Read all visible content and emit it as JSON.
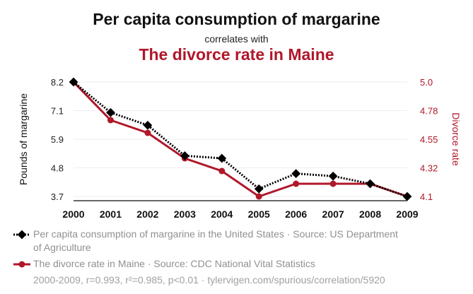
{
  "title": "Per capita consumption of margarine",
  "subtitle": "correlates with",
  "title2": "The divorce rate in Maine",
  "colors": {
    "series1": "#000000",
    "series2": "#b0172a",
    "title2": "#b0172a",
    "axis_right": "#b0172a"
  },
  "chart_data": {
    "type": "line",
    "x": [
      "2000",
      "2001",
      "2002",
      "2003",
      "2004",
      "2005",
      "2006",
      "2007",
      "2008",
      "2009"
    ],
    "series": [
      {
        "name": "Per capita consumption of margarine in the United States · Source: US Department of Agriculture",
        "axis": "left",
        "values": [
          8.2,
          7.0,
          6.5,
          5.3,
          5.2,
          4.0,
          4.6,
          4.5,
          4.2,
          3.7
        ]
      },
      {
        "name": "The divorce rate in Maine · Source: CDC National Vital Statistics",
        "axis": "right",
        "values": [
          5.0,
          4.7,
          4.6,
          4.4,
          4.3,
          4.1,
          4.2,
          4.2,
          4.2,
          4.1
        ]
      }
    ],
    "ylabel": "Pounds of margarine",
    "ylabel_right": "Divorce rate",
    "yticks": [
      "3.7",
      "4.8",
      "5.9",
      "7.1",
      "8.2"
    ],
    "yticks_right": [
      "4.1",
      "4.32",
      "4.55",
      "4.78",
      "5.0"
    ],
    "ylim": [
      3.7,
      8.2
    ],
    "ylim_right": [
      4.1,
      5.0
    ]
  },
  "legend": {
    "item1": "Per capita consumption of margarine in the United States · Source: US Department of Agriculture",
    "item2": "The divorce rate in Maine · Source: CDC National Vital Statistics"
  },
  "footer": "2000-2009, r=0.993, r²=0.985, p<0.01 · tylervigen.com/spurious/correlation/5920"
}
